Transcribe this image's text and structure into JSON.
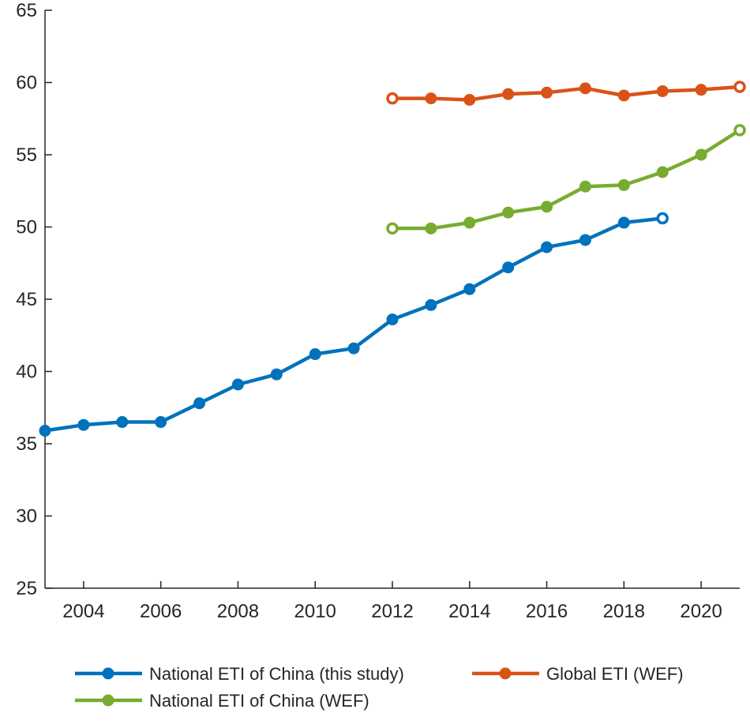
{
  "chart_data": {
    "type": "line",
    "title": "",
    "xlabel": "",
    "ylabel": "",
    "xlim": [
      2003,
      2021
    ],
    "ylim": [
      25,
      65
    ],
    "yticks": [
      25,
      30,
      35,
      40,
      45,
      50,
      55,
      60,
      65
    ],
    "xticks": [
      2004,
      2006,
      2008,
      2010,
      2012,
      2014,
      2016,
      2018,
      2020
    ],
    "grid": false,
    "legend_position": "bottom",
    "series": [
      {
        "name": "National ETI of China (this study)",
        "color": "#0072BD",
        "x": [
          2003,
          2004,
          2005,
          2006,
          2007,
          2008,
          2009,
          2010,
          2011,
          2012,
          2013,
          2014,
          2015,
          2016,
          2017,
          2018,
          2019
        ],
        "values": [
          35.9,
          36.3,
          36.5,
          36.5,
          37.8,
          39.1,
          39.8,
          41.2,
          41.6,
          43.6,
          44.6,
          45.7,
          47.2,
          48.6,
          49.1,
          50.3,
          50.6
        ],
        "last_point_hollow": true
      },
      {
        "name": "Global ETI (WEF)",
        "color": "#D95319",
        "x": [
          2012,
          2013,
          2014,
          2015,
          2016,
          2017,
          2018,
          2019,
          2020,
          2021
        ],
        "values": [
          58.9,
          58.9,
          58.8,
          59.2,
          59.3,
          59.6,
          59.1,
          59.4,
          59.5,
          59.7
        ],
        "first_point_hollow": true,
        "last_point_hollow": true
      },
      {
        "name": "National ETI of China (WEF)",
        "color": "#77AC30",
        "x": [
          2012,
          2013,
          2014,
          2015,
          2016,
          2017,
          2018,
          2019,
          2020,
          2021
        ],
        "values": [
          49.9,
          49.9,
          50.3,
          51.0,
          51.4,
          52.8,
          52.9,
          53.8,
          55.0,
          56.7
        ],
        "first_point_hollow": true,
        "last_point_hollow": true
      }
    ]
  }
}
